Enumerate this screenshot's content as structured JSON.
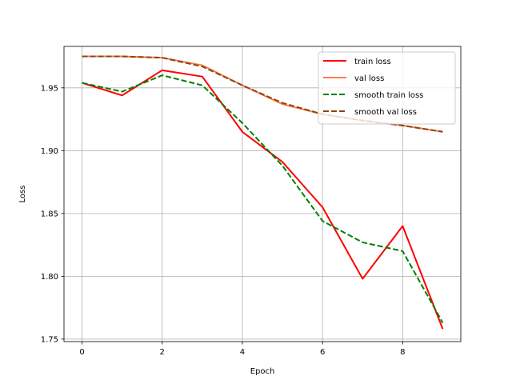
{
  "chart_data": {
    "type": "line",
    "title": "",
    "xlabel": "Epoch",
    "ylabel": "Loss",
    "x": [
      0,
      1,
      2,
      3,
      4,
      5,
      6,
      7,
      8,
      9
    ],
    "xlim": [
      -0.45,
      9.45
    ],
    "ylim": [
      1.748,
      1.983
    ],
    "xticks": [
      0,
      2,
      4,
      6,
      8
    ],
    "xtick_labels": [
      "0",
      "2",
      "4",
      "6",
      "8"
    ],
    "yticks": [
      1.75,
      1.8,
      1.85,
      1.9,
      1.95
    ],
    "ytick_labels": [
      "1.75",
      "1.80",
      "1.85",
      "1.90",
      "1.95"
    ],
    "grid": true,
    "legend_position": "top-right",
    "series": [
      {
        "name": "train loss",
        "color": "#ff0000",
        "style": "solid",
        "values": [
          1.954,
          1.944,
          1.964,
          1.959,
          1.915,
          1.891,
          1.855,
          1.798,
          1.84,
          1.758
        ]
      },
      {
        "name": "val loss",
        "color": "#ff7f50",
        "style": "solid",
        "values": [
          1.975,
          1.975,
          1.974,
          1.968,
          1.952,
          1.937,
          1.929,
          1.924,
          1.92,
          1.915
        ]
      },
      {
        "name": "smooth train loss",
        "color": "#008000",
        "style": "dashed",
        "values": [
          1.954,
          1.947,
          1.96,
          1.952,
          1.922,
          1.888,
          1.844,
          1.827,
          1.82,
          1.763
        ]
      },
      {
        "name": "smooth val loss",
        "color": "#8b4513",
        "style": "dashed",
        "values": [
          1.975,
          1.975,
          1.974,
          1.967,
          1.952,
          1.938,
          1.929,
          1.924,
          1.92,
          1.915
        ]
      }
    ]
  }
}
